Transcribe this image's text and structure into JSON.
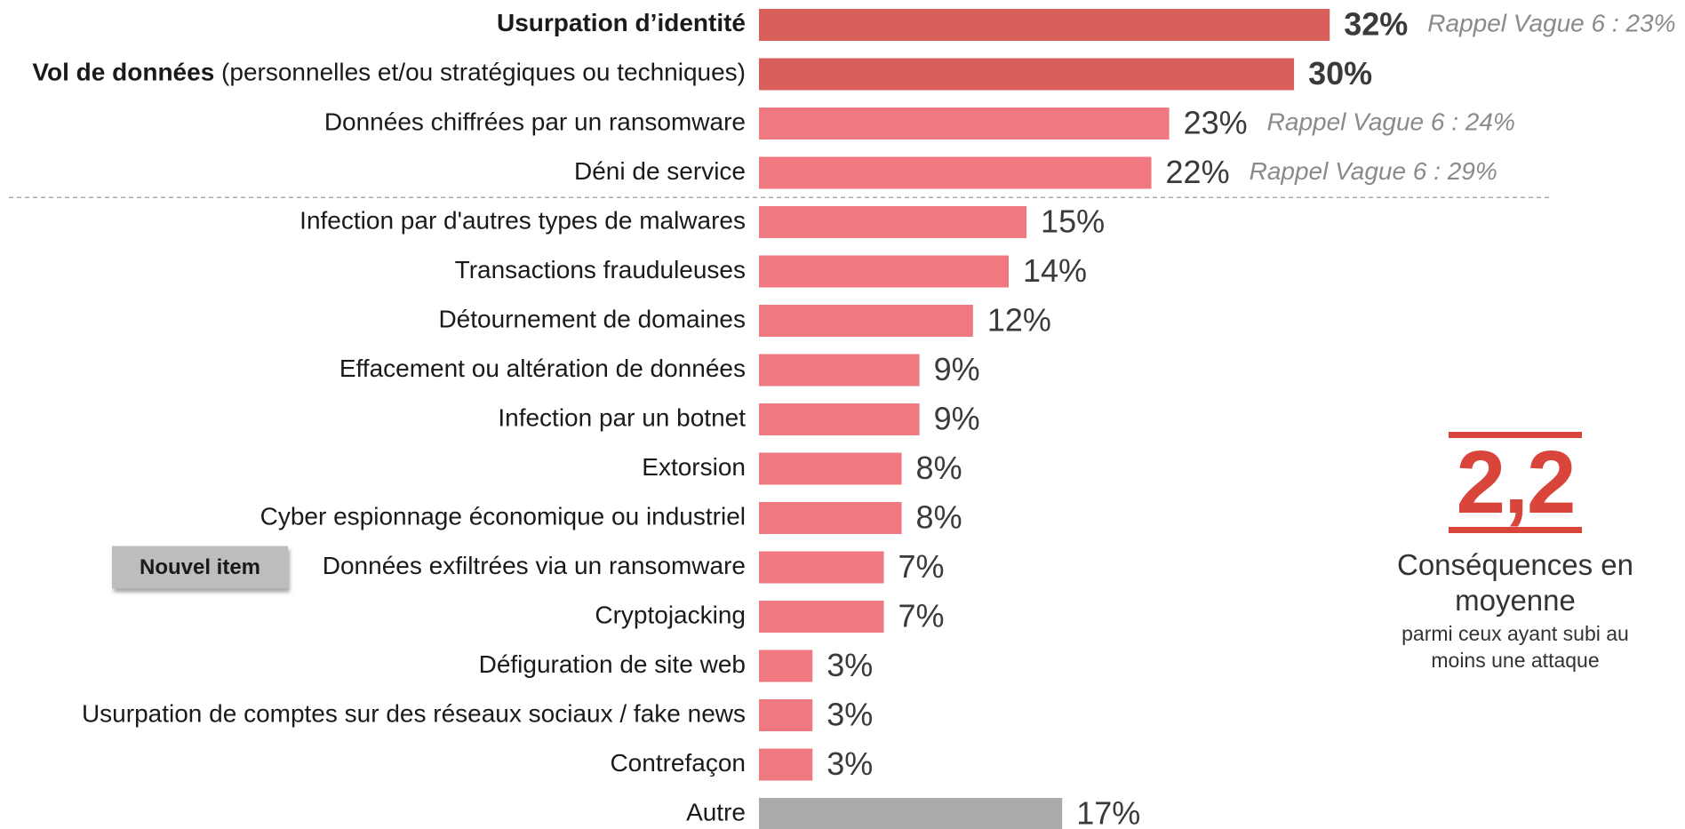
{
  "chart_data": {
    "type": "bar",
    "categories": [
      "Usurpation d’identité",
      "Vol de données (personnelles et/ou stratégiques ou techniques)",
      "Données chiffrées par un ransomware",
      "Déni de service",
      "Infection par d'autres types de malwares",
      "Transactions frauduleuses",
      "Détournement de domaines",
      "Effacement ou altération de données",
      "Infection par un botnet",
      "Extorsion",
      "Cyber espionnage économique ou industriel",
      "Données exfiltrées via un ransomware",
      "Cryptojacking",
      "Défiguration de site web",
      "Usurpation de comptes sur des réseaux sociaux / fake news",
      "Contrefaçon",
      "Autre"
    ],
    "values": [
      32,
      30,
      23,
      22,
      15,
      14,
      12,
      9,
      9,
      8,
      8,
      7,
      7,
      3,
      3,
      3,
      17
    ],
    "value_labels": [
      "32%",
      "30%",
      "23%",
      "22%",
      "15%",
      "14%",
      "12%",
      "9%",
      "9%",
      "8%",
      "8%",
      "7%",
      "7%",
      "3%",
      "3%",
      "3%",
      "17%"
    ],
    "colors": [
      "#d9605a",
      "#d9605a",
      "#f07880",
      "#f07880",
      "#f07880",
      "#f07880",
      "#f07880",
      "#f07880",
      "#f07880",
      "#f07880",
      "#f07880",
      "#f07880",
      "#f07880",
      "#f07880",
      "#f07880",
      "#f07880",
      "#aaaaaa"
    ],
    "bold_categories": [
      "Usurpation d’identité",
      "Vol de données"
    ],
    "recall_labels": [
      "Rappel Vague 6 : 23%",
      null,
      "Rappel Vague 6 : 24%",
      "Rappel Vague 6 : 29%",
      null,
      null,
      null,
      null,
      null,
      null,
      null,
      null,
      null,
      null,
      null,
      null,
      null
    ],
    "separator_after": "Déni de service",
    "badge": {
      "label": "Nouvel item",
      "category": "Données exfiltrées via un ransomware"
    }
  },
  "summary": {
    "value": "2,2",
    "label": "Conséquences en moyenne",
    "note": "parmi ceux ayant subi au moins une attaque"
  }
}
